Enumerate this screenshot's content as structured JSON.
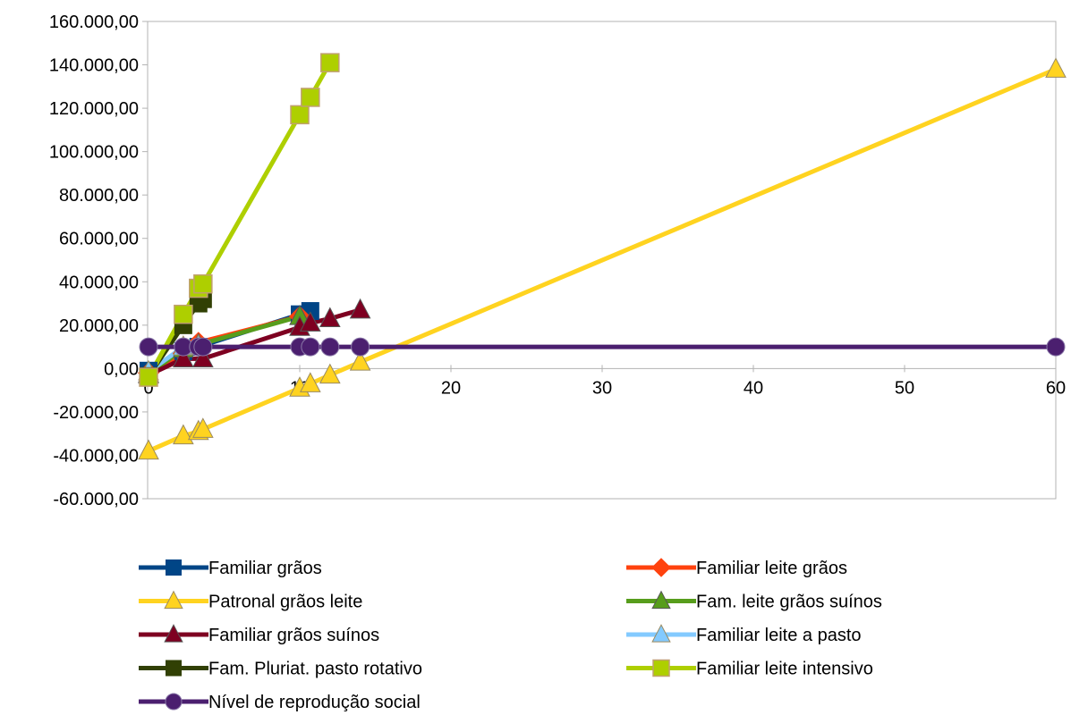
{
  "chart_data": {
    "type": "line",
    "title": "",
    "xlabel": "",
    "ylabel": "",
    "xlim": [
      0,
      60
    ],
    "ylim": [
      -60000,
      160000
    ],
    "x_ticks": [
      {
        "value": 0,
        "label": "0"
      },
      {
        "value": 10,
        "label": "10"
      },
      {
        "value": 20,
        "label": "20"
      },
      {
        "value": 30,
        "label": "30"
      },
      {
        "value": 40,
        "label": "40"
      },
      {
        "value": 50,
        "label": "50"
      },
      {
        "value": 60,
        "label": "60"
      }
    ],
    "y_ticks": [
      {
        "value": 160000,
        "label": "160.000,00"
      },
      {
        "value": 140000,
        "label": "140.000,00"
      },
      {
        "value": 120000,
        "label": "120.000,00"
      },
      {
        "value": 100000,
        "label": "100.000,00"
      },
      {
        "value": 80000,
        "label": "80.000,00"
      },
      {
        "value": 60000,
        "label": "60.000,00"
      },
      {
        "value": 40000,
        "label": "40.000,00"
      },
      {
        "value": 20000,
        "label": "20.000,00"
      },
      {
        "value": 0,
        "label": "0,00"
      },
      {
        "value": -20000,
        "label": "-20.000,00"
      },
      {
        "value": -40000,
        "label": "-40.000,00"
      },
      {
        "value": -60000,
        "label": "-60.000,00"
      }
    ],
    "grid": false,
    "legend_position": "bottom",
    "series": [
      {
        "name": "Familiar grãos",
        "color": "#004586",
        "marker": "square",
        "points": [
          [
            0,
            -1000
          ],
          [
            2.3,
            8000
          ],
          [
            3.3,
            10000
          ],
          [
            10,
            25000
          ],
          [
            10.7,
            26500
          ]
        ]
      },
      {
        "name": "Familiar leite grãos",
        "color": "#ff420e",
        "marker": "diamond",
        "points": [
          [
            0,
            -2000
          ],
          [
            2.3,
            7000
          ],
          [
            3.3,
            12000
          ],
          [
            10,
            24000
          ]
        ]
      },
      {
        "name": "Patronal grãos leite",
        "color": "#ffd320",
        "marker": "triangle",
        "points": [
          [
            0,
            -38000
          ],
          [
            2.3,
            -31000
          ],
          [
            3.3,
            -29000
          ],
          [
            3.6,
            -28000
          ],
          [
            10,
            -9000
          ],
          [
            10.7,
            -7000
          ],
          [
            12,
            -3000
          ],
          [
            14,
            3000
          ],
          [
            60,
            138000
          ]
        ]
      },
      {
        "name": "Fam. leite grãos suínos",
        "color": "#579d1c",
        "marker": "triangle",
        "points": [
          [
            0,
            -2500
          ],
          [
            2.3,
            9000
          ],
          [
            3.3,
            11000
          ],
          [
            10,
            24000
          ]
        ]
      },
      {
        "name": "Familiar grãos suínos",
        "color": "#7e0021",
        "marker": "triangle",
        "points": [
          [
            0,
            -3000
          ],
          [
            2.3,
            4500
          ],
          [
            3.6,
            4500
          ],
          [
            10,
            19000
          ],
          [
            10.7,
            21000
          ],
          [
            12,
            23000
          ],
          [
            14,
            27000
          ]
        ]
      },
      {
        "name": "Familiar leite a pasto",
        "color": "#83caff",
        "marker": "triangle",
        "points": [
          [
            0,
            -1500
          ],
          [
            2.3,
            10000
          ],
          [
            3.3,
            10500
          ]
        ]
      },
      {
        "name": "Fam. Pluriat. pasto rotativo",
        "color": "#314004",
        "marker": "square",
        "points": [
          [
            0,
            -3500
          ],
          [
            2.3,
            20000
          ],
          [
            3.3,
            30000
          ],
          [
            3.6,
            32000
          ]
        ]
      },
      {
        "name": "Familiar leite intensivo",
        "color": "#aecf00",
        "marker": "square",
        "points": [
          [
            0,
            -4000
          ],
          [
            2.3,
            25000
          ],
          [
            3.3,
            37000
          ],
          [
            3.6,
            39000
          ],
          [
            10,
            117000
          ],
          [
            10.7,
            125000
          ],
          [
            12,
            141000
          ]
        ]
      },
      {
        "name": "Nível de reprodução social",
        "color": "#4b1f6f",
        "marker": "circle",
        "points": [
          [
            0,
            10000
          ],
          [
            2.3,
            10000
          ],
          [
            3.3,
            10000
          ],
          [
            3.6,
            10000
          ],
          [
            10,
            10000
          ],
          [
            10.7,
            10000
          ],
          [
            12,
            10000
          ],
          [
            14,
            10000
          ],
          [
            60,
            10000
          ]
        ]
      }
    ]
  }
}
